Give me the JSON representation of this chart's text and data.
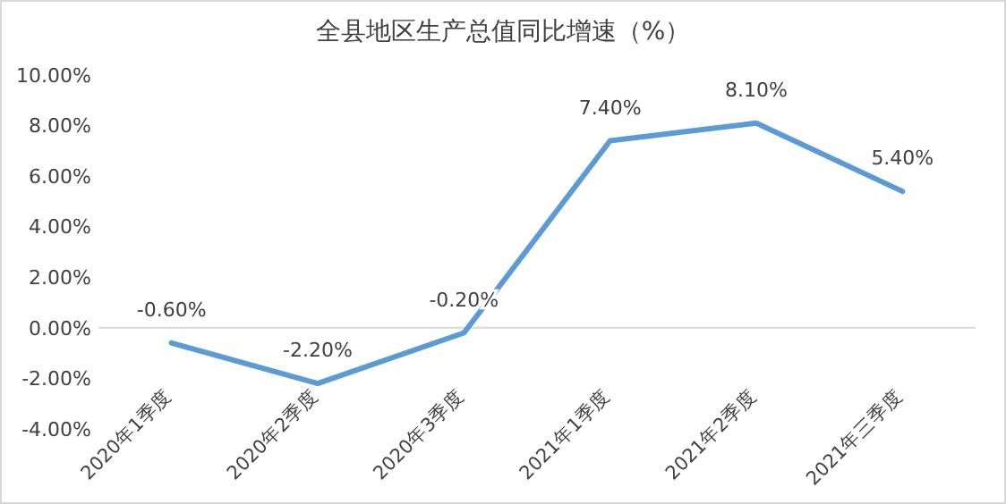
{
  "chart_data": {
    "type": "line",
    "title": "全县地区生产总值同比增速（%）",
    "categories": [
      "2020年1季度",
      "2020年2季度",
      "2020年3季度",
      "2021年1季度",
      "2021年2季度",
      "2021年三季度"
    ],
    "values": [
      -0.6,
      -2.2,
      -0.2,
      7.4,
      8.1,
      5.4
    ],
    "value_labels": [
      "-0.60%",
      "-2.20%",
      "-0.20%",
      "7.40%",
      "8.10%",
      "5.40%"
    ],
    "color": "#5b9bd5",
    "marker": "none",
    "line_style": "solid",
    "ylim": [
      -4,
      10
    ],
    "yticks": [
      {
        "value": -4,
        "label": "-4.00%"
      },
      {
        "value": -2,
        "label": "-2.00%"
      },
      {
        "value": 0,
        "label": "0.00%"
      },
      {
        "value": 2,
        "label": "2.00%"
      },
      {
        "value": 4,
        "label": "4.00%"
      },
      {
        "value": 6,
        "label": "6.00%"
      },
      {
        "value": 8,
        "label": "8.00%"
      },
      {
        "value": 10,
        "label": "10.00%"
      }
    ]
  }
}
